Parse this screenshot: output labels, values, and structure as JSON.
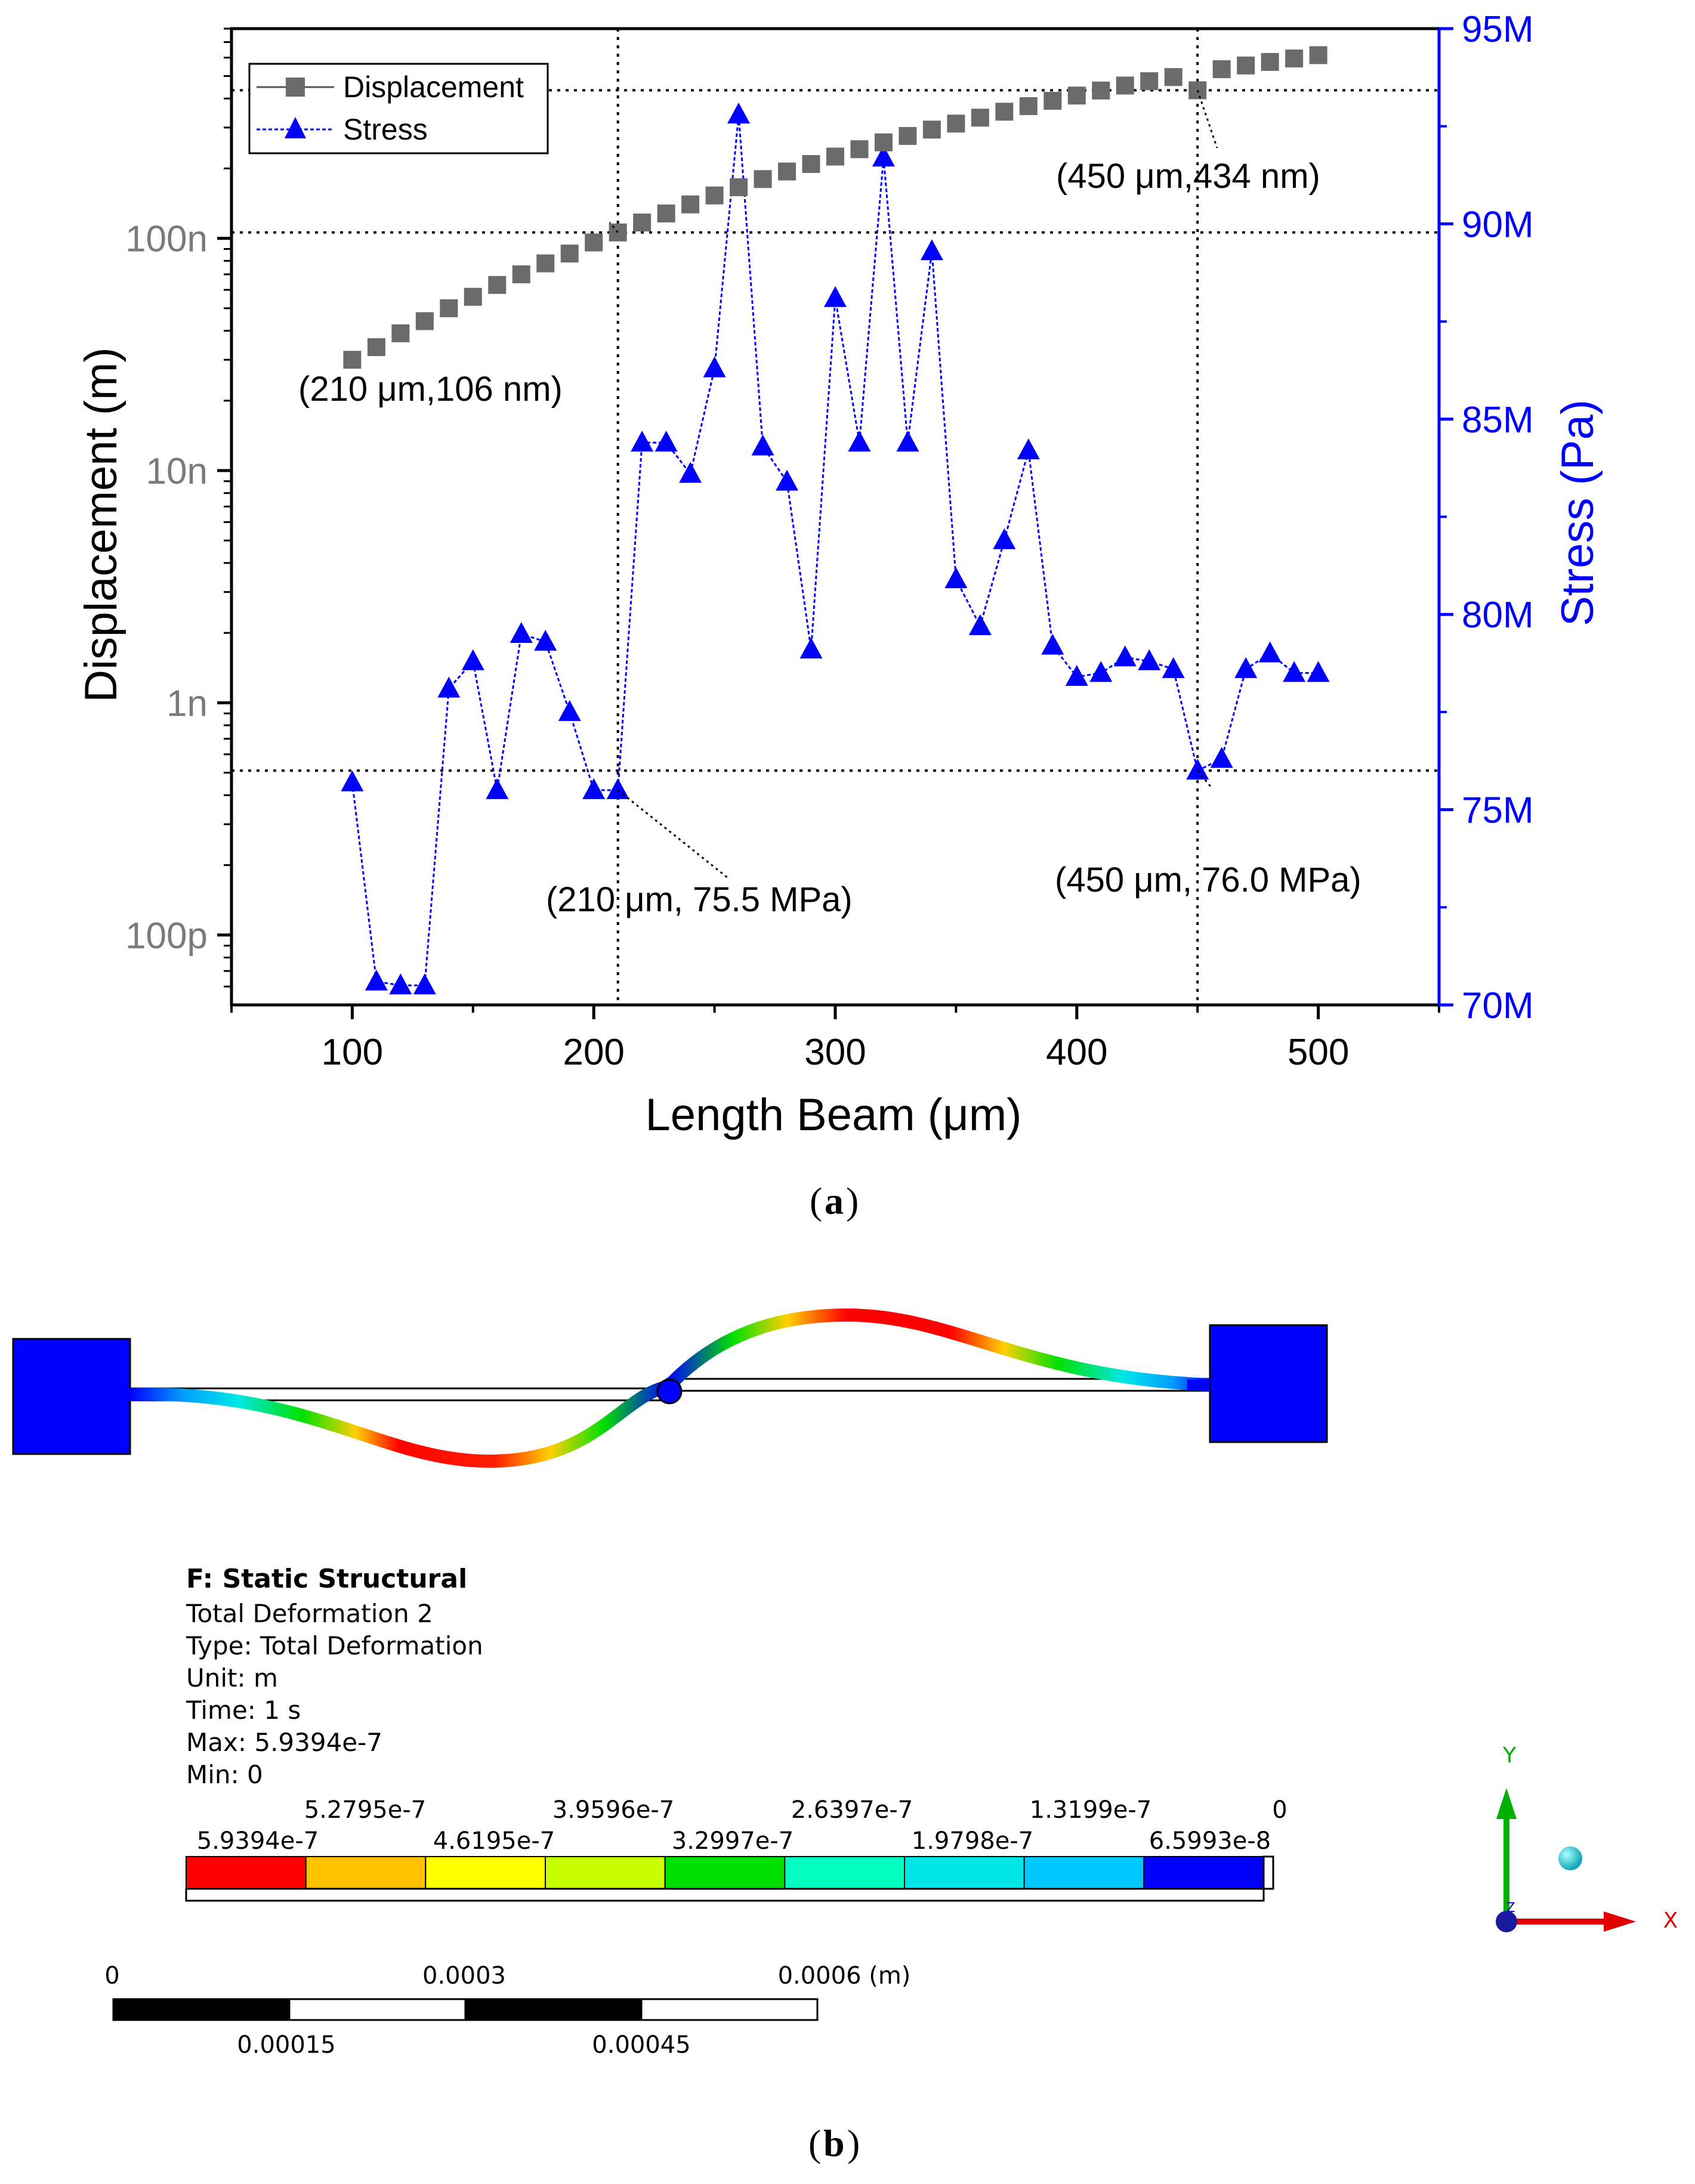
{
  "chart_data": {
    "type": "line",
    "title": "",
    "xlabel": "Length Beam (μm)",
    "ylabel_left": "Displacement (m)",
    "ylabel_right": "Stress (Pa)",
    "xlim": [
      50,
      550
    ],
    "x_ticks": [
      100,
      200,
      300,
      400,
      500
    ],
    "x_tick_labels": [
      "100",
      "200",
      "300",
      "400",
      "500"
    ],
    "y_left_scale": "log",
    "y_left_lim": [
      5e-11,
      8e-07
    ],
    "y_left_ticks": [
      1e-10,
      1e-09,
      1e-08,
      1e-07
    ],
    "y_left_tick_labels": [
      "100p",
      "1n",
      "10n",
      "100n"
    ],
    "y_right_lim": [
      70000000,
      95000000
    ],
    "y_right_ticks": [
      70000000,
      75000000,
      80000000,
      85000000,
      90000000,
      95000000
    ],
    "y_right_tick_labels": [
      "70M",
      "75M",
      "80M",
      "85M",
      "90M",
      "95M"
    ],
    "legend": "top-left",
    "x": [
      100,
      110,
      120,
      130,
      140,
      150,
      160,
      170,
      180,
      190,
      200,
      210,
      220,
      230,
      240,
      250,
      260,
      270,
      280,
      290,
      300,
      310,
      320,
      330,
      340,
      350,
      360,
      370,
      380,
      390,
      400,
      410,
      420,
      430,
      440,
      450,
      460,
      470,
      480,
      490,
      500
    ],
    "series": [
      {
        "name": "Displacement",
        "axis": "left",
        "marker": "square",
        "color": "#6b6b6b",
        "values": [
          3e-08,
          3.4e-08,
          3.9e-08,
          4.4e-08,
          5e-08,
          5.6e-08,
          6.3e-08,
          7e-08,
          7.8e-08,
          8.6e-08,
          9.6e-08,
          1.06e-07,
          1.17e-07,
          1.28e-07,
          1.4e-07,
          1.53e-07,
          1.66e-07,
          1.8e-07,
          1.94e-07,
          2.09e-07,
          2.25e-07,
          2.42e-07,
          2.59e-07,
          2.76e-07,
          2.94e-07,
          3.12e-07,
          3.31e-07,
          3.51e-07,
          3.71e-07,
          3.91e-07,
          4.12e-07,
          4.33e-07,
          4.55e-07,
          4.75e-07,
          4.95e-07,
          4.34e-07,
          5.35e-07,
          5.55e-07,
          5.75e-07,
          5.95e-07,
          6.15e-07
        ]
      },
      {
        "name": "Stress",
        "axis": "right",
        "marker": "triangle",
        "color": "#0000ff",
        "values": [
          75700000.0,
          70600000.0,
          70500000.0,
          70500000.0,
          78100000.0,
          78800000.0,
          75500000.0,
          79500000.0,
          79300000.0,
          77500000.0,
          75500000.0,
          75500000.0,
          84400000.0,
          84400000.0,
          83600000.0,
          86300000.0,
          92800000.0,
          84300000.0,
          83400000.0,
          79100000.0,
          88100000.0,
          84400000.0,
          91700000.0,
          84400000.0,
          89300000.0,
          80900000.0,
          79700000.0,
          81900000.0,
          84200000.0,
          79200000.0,
          78400000.0,
          78500000.0,
          78900000.0,
          78800000.0,
          78600000.0,
          76000000.0,
          76300000.0,
          78600000.0,
          79000000.0,
          78500000.0,
          78500000.0
        ]
      }
    ],
    "annotations": [
      {
        "text": "(450 μm,434 nm)",
        "x": 450,
        "value": 4.34e-07,
        "axis": "left"
      },
      {
        "text": "(210 μm,106 nm)",
        "x": 210,
        "value": 1.06e-07,
        "axis": "left"
      },
      {
        "text": "(210 μm, 75.5 MPa)",
        "x": 210,
        "value": 75500000.0,
        "axis": "right"
      },
      {
        "text": "(450 μm, 76.0 MPa)",
        "x": 450,
        "value": 76000000.0,
        "axis": "right"
      }
    ]
  },
  "captions": {
    "a": "a",
    "b": "b"
  },
  "simulation": {
    "title": "F: Static Structural",
    "lines": [
      "Total Deformation 2",
      "Type: Total Deformation",
      "Unit: m",
      "Time: 1 s",
      "Max: 5.9394e-7",
      "Min: 0"
    ],
    "legend_top_labels": [
      "5.2795e-7",
      "3.9596e-7",
      "2.6397e-7",
      "1.3199e-7",
      "0"
    ],
    "legend_bottom_labels": [
      "5.9394e-7",
      "4.6195e-7",
      "3.2997e-7",
      "1.9798e-7",
      "6.5993e-8"
    ],
    "legend_colors": [
      "#ff0000",
      "#ffc000",
      "#ffff00",
      "#c8ff00",
      "#00e000",
      "#00ffc0",
      "#00e6e6",
      "#00c8ff",
      "#0000ff"
    ],
    "scale_top_labels": [
      "0",
      "0.0003",
      "0.0006 (m)"
    ],
    "scale_bottom_labels": [
      "0.00015",
      "0.00045"
    ],
    "triad": {
      "y_label": "Y",
      "x_label": "X",
      "z_label": "Z"
    }
  }
}
